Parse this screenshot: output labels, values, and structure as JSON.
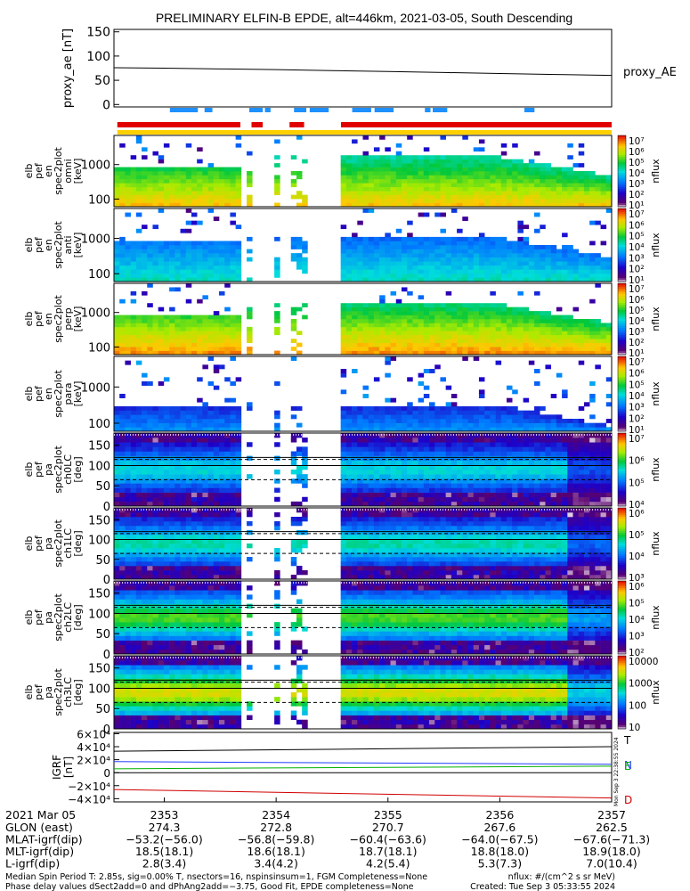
{
  "title": "PRELIMINARY ELFIN-B EPDE, alt=446km, 2021-03-05, South Descending",
  "colors": {
    "ae_line": "#000000",
    "blue_bar": "#1e90ff",
    "red_bar": "#e00000",
    "yellow_bar": "#ffd000",
    "igrf_T": "#000000",
    "igrf_N": "#1e3cff",
    "igrf_E": "#00b000",
    "igrf_D": "#d00000"
  },
  "chart_data": [
    {
      "type": "line",
      "panel": "proxy_ae",
      "ylabel": "proxy_ae [nT]",
      "legend": "proxy_AE",
      "ylim": [
        -5,
        155
      ],
      "yticks": [
        "150",
        "100",
        "50",
        "0"
      ],
      "ytick_values": [
        150,
        100,
        50,
        0
      ],
      "x": [
        2352.55,
        2353.0,
        2353.5,
        2354.0,
        2354.5,
        2355.0,
        2355.5,
        2356.0,
        2356.5,
        2357.0
      ],
      "y": [
        76,
        75,
        73.5,
        72,
        70,
        68,
        66,
        64,
        62,
        60
      ]
    },
    {
      "type": "timeline",
      "panel": "flag_bars",
      "blue_segments": [
        [
          2353.05,
          2353.3
        ],
        [
          2353.36,
          2353.43
        ],
        [
          2353.76,
          2353.88
        ],
        [
          2353.9,
          2353.95
        ],
        [
          2354.16,
          2354.27
        ],
        [
          2354.3,
          2354.47
        ],
        [
          2354.68,
          2354.85
        ],
        [
          2354.88,
          2355.05
        ],
        [
          2355.33,
          2355.38
        ],
        [
          2355.4,
          2355.53
        ],
        [
          2356.22,
          2356.31
        ]
      ],
      "red_segments": [
        [
          2352.58,
          2353.68
        ],
        [
          2353.78,
          2353.88
        ],
        [
          2354.12,
          2354.25
        ],
        [
          2354.58,
          2357.0
        ]
      ],
      "yellow_segments": [
        [
          2352.58,
          2357.0
        ]
      ]
    },
    {
      "type": "heatmap",
      "panel": "elb_pef_en_spec2plot_omni",
      "ylabel": [
        "elb",
        "pef",
        "en",
        "spec2plot",
        "omni",
        "[keV]"
      ],
      "yticks": [
        "1000",
        "100"
      ],
      "ytick_values": [
        1000,
        100
      ],
      "yscale": "log",
      "ylim": [
        60,
        7000
      ],
      "zlabel": "nflux",
      "zticks": [
        "10⁷",
        "10⁶",
        "10⁵",
        "10⁴",
        "10³",
        "10²",
        "10¹"
      ],
      "max_energy_keV": 1800,
      "intensity": 0.9
    },
    {
      "type": "heatmap",
      "panel": "elb_pef_en_spec2plot_anti",
      "ylabel": [
        "elb",
        "pef",
        "en",
        "spec2plot",
        "anti",
        "[keV]"
      ],
      "yticks": [
        "1000",
        "100"
      ],
      "ytick_values": [
        1000,
        100
      ],
      "yscale": "log",
      "ylim": [
        60,
        7000
      ],
      "zlabel": "nflux",
      "zticks": [
        "10⁷",
        "10⁶",
        "10⁵",
        "10⁴",
        "10³",
        "10²",
        "10¹"
      ],
      "max_energy_keV": 1100,
      "intensity": 0.55
    },
    {
      "type": "heatmap",
      "panel": "elb_pef_en_spec2plot_perp",
      "ylabel": [
        "elb",
        "pef",
        "en",
        "spec2plot",
        "perp",
        "[keV]"
      ],
      "yticks": [
        "1000",
        "100"
      ],
      "ytick_values": [
        1000,
        100
      ],
      "yscale": "log",
      "ylim": [
        60,
        7000
      ],
      "zlabel": "nflux",
      "zticks": [
        "10⁷",
        "10⁶",
        "10⁵",
        "10⁴",
        "10³",
        "10²",
        "10¹"
      ],
      "max_energy_keV": 1900,
      "intensity": 0.95
    },
    {
      "type": "heatmap",
      "panel": "elb_pef_en_spec2plot_para",
      "ylabel": [
        "elb",
        "pef",
        "en",
        "spec2plot",
        "para",
        "[keV]"
      ],
      "yticks": [
        "1000",
        "100"
      ],
      "ytick_values": [
        1000,
        100
      ],
      "yscale": "log",
      "ylim": [
        60,
        7000
      ],
      "zlabel": "nflux",
      "zticks": [
        "10⁷",
        "10⁶",
        "10⁵",
        "10⁴",
        "10³",
        "10²",
        "10¹"
      ],
      "max_energy_keV": 300,
      "intensity": 0.4
    },
    {
      "type": "heatmap",
      "panel": "elb_pef_pa_spec2plot_ch0LC",
      "ylabel": [
        "elb",
        "pef",
        "pa",
        "spec2plot",
        "ch0LC",
        "[deg]"
      ],
      "yticks": [
        "150",
        "100",
        "50",
        "0"
      ],
      "ytick_values": [
        150,
        100,
        50,
        0
      ],
      "ylim": [
        0,
        180
      ],
      "zlabel": "nflux",
      "zticks": [
        "10⁷",
        "10⁶",
        "10⁵",
        "10⁴"
      ],
      "lc_lines": [
        65,
        115
      ],
      "hlines": [
        100,
        120
      ],
      "intensity": 0.55
    },
    {
      "type": "heatmap",
      "panel": "elb_pef_pa_spec2plot_ch1LC",
      "ylabel": [
        "elb",
        "pef",
        "pa",
        "spec2plot",
        "ch1LC",
        "[deg]"
      ],
      "yticks": [
        "150",
        "100",
        "50",
        "0"
      ],
      "ytick_values": [
        150,
        100,
        50,
        0
      ],
      "ylim": [
        0,
        180
      ],
      "zlabel": "nflux",
      "zticks": [
        "10⁶",
        "10⁵",
        "10⁴",
        "10³"
      ],
      "lc_lines": [
        65,
        115
      ],
      "hlines": [
        100,
        120
      ],
      "intensity": 0.6
    },
    {
      "type": "heatmap",
      "panel": "elb_pef_pa_spec2plot_ch2LC",
      "ylabel": [
        "elb",
        "pef",
        "pa",
        "spec2plot",
        "ch2LC",
        "[deg]"
      ],
      "yticks": [
        "150",
        "100",
        "50",
        "0"
      ],
      "ytick_values": [
        150,
        100,
        50,
        0
      ],
      "ylim": [
        0,
        180
      ],
      "zlabel": "nflux",
      "zticks": [
        "10⁶",
        "10⁵",
        "10⁴",
        "10³",
        "10²"
      ],
      "lc_lines": [
        65,
        115
      ],
      "hlines": [
        100,
        120
      ],
      "intensity": 0.75
    },
    {
      "type": "heatmap",
      "panel": "elb_pef_pa_spec2plot_ch3LC",
      "ylabel": [
        "elb",
        "pef",
        "pa",
        "spec2plot",
        "ch3LC",
        "[deg]"
      ],
      "yticks": [
        "150",
        "100",
        "50",
        "0"
      ],
      "ytick_values": [
        150,
        100,
        50,
        0
      ],
      "ylim": [
        0,
        180
      ],
      "zlabel": "nflux",
      "zticks": [
        "10000",
        "1000",
        "100",
        "10"
      ],
      "lc_lines": [
        65,
        115
      ],
      "hlines": [
        100,
        120
      ],
      "intensity": 0.9
    },
    {
      "type": "line",
      "panel": "IGRF",
      "ylabel": [
        "IGRF",
        "[nT]"
      ],
      "ylim": [
        -45000,
        62000
      ],
      "yticks": [
        "6×10⁴",
        "4×10⁴",
        "2×10⁴",
        "0",
        "−2×10⁴",
        "−4×10⁴"
      ],
      "ytick_values": [
        60000,
        40000,
        20000,
        0,
        -20000,
        -40000
      ],
      "x": [
        2352.55,
        2357.0
      ],
      "series": [
        {
          "name": "T",
          "values": [
            33000,
            40000
          ]
        },
        {
          "name": "N",
          "values": [
            17000,
            13000
          ]
        },
        {
          "name": "E",
          "values": [
            6000,
            10000
          ]
        },
        {
          "name": "D",
          "values": [
            -26000,
            -39000
          ]
        }
      ]
    }
  ],
  "data_gaps": [
    [
      2353.68,
      2353.76
    ],
    [
      2353.78,
      2353.82
    ],
    [
      2353.86,
      2354.0
    ],
    [
      2354.02,
      2354.13
    ],
    [
      2354.28,
      2354.36
    ],
    [
      2354.38,
      2354.47
    ],
    [
      2354.5,
      2354.58
    ]
  ],
  "time_axis": {
    "xlim": [
      2352.55,
      2357.0
    ],
    "ticks": [
      2353,
      2354,
      2355,
      2356,
      2357
    ],
    "date": "2021 Mar 05",
    "rows": [
      {
        "label": "GLON (east)",
        "values": [
          "274.3",
          "272.8",
          "270.7",
          "267.6",
          "262.5"
        ]
      },
      {
        "label": "MLAT-igrf(dip)",
        "values": [
          "−53.2(−56.0)",
          "−56.8(−59.8)",
          "−60.4(−63.6)",
          "−64.0(−67.5)",
          "−67.6(−71.3)"
        ]
      },
      {
        "label": "MLT-igrf(dip)",
        "values": [
          "18.5(18.1)",
          "18.6(18.1)",
          "18.7(18.1)",
          "18.8(18.0)",
          "18.9(18.0)"
        ]
      },
      {
        "label": "L-igrf(dip)",
        "values": [
          "2.8(3.4)",
          "3.4(4.2)",
          "4.2(5.4)",
          "5.3(7.3)",
          "7.0(10.4)"
        ]
      }
    ]
  },
  "footer": {
    "line1": "Median Spin Period T: 2.85s, sig=0.00% T, nsectors=16, nspinsinsum=1, FGM Completeness=None",
    "line2": "Phase delay values dSect2add=0 and dPhAng2add=−3.75, Good Fit, EPDE completeness=None",
    "units": "nflux: #/(cm^2 s sr MeV)",
    "created": "Created: Tue Sep  3 05:33:55 2024",
    "side_stamp": "Mon Sep  3 22:38:55 2024"
  }
}
